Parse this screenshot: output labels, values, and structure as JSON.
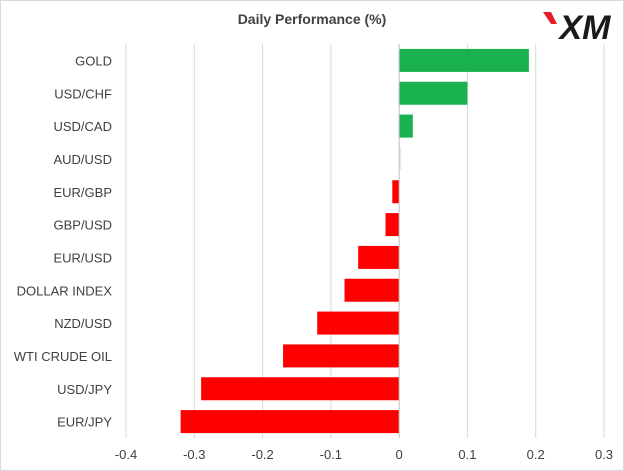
{
  "brand": {
    "logo_text": "XM",
    "logo_color": "#1a1a1a",
    "logo_accent": "#e41e26"
  },
  "chart_data": {
    "type": "bar",
    "orientation": "horizontal",
    "title": "Daily Performance (%)",
    "categories": [
      "GOLD",
      "USD/CHF",
      "USD/CAD",
      "AUD/USD",
      "EUR/GBP",
      "GBP/USD",
      "EUR/USD",
      "DOLLAR INDEX",
      "NZD/USD",
      "WTI CRUDE OIL",
      "USD/JPY",
      "EUR/JPY"
    ],
    "values": [
      0.19,
      0.1,
      0.02,
      0.003,
      -0.01,
      -0.02,
      -0.06,
      -0.08,
      -0.12,
      -0.17,
      -0.29,
      -0.32
    ],
    "xlim": [
      -0.4,
      0.3
    ],
    "xticks": [
      "-0.4",
      "-0.3",
      "-0.2",
      "-0.1",
      "0",
      "0.1",
      "0.2",
      "0.3"
    ],
    "xtick_values": [
      -0.4,
      -0.3,
      -0.2,
      -0.1,
      0,
      0.1,
      0.2,
      0.3
    ],
    "grid": true,
    "positive_color": "#1ab151",
    "negative_color": "#ff0000",
    "neutral_color": "#e8e8e8"
  }
}
